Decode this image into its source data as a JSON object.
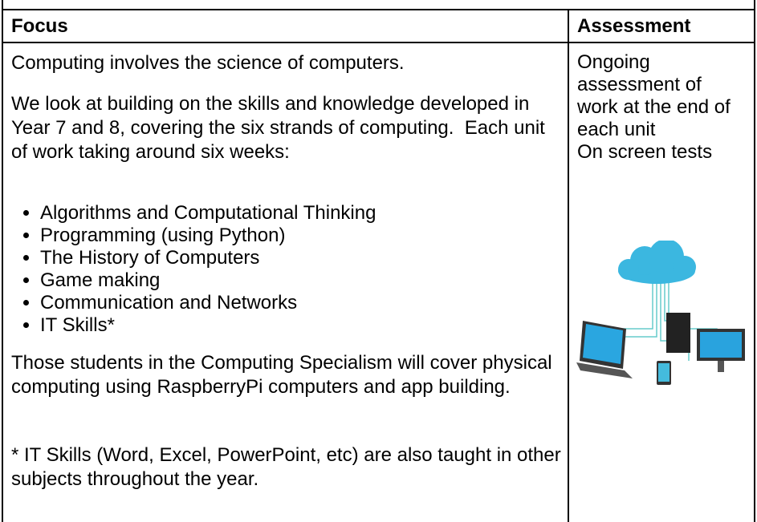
{
  "header": {
    "focus": "Focus",
    "assessment": "Assessment"
  },
  "focus": {
    "intro": "Computing involves the science of computers.",
    "description": "We look at building on the skills and knowledge developed in Year 7 and 8, covering the six strands of computing.  Each unit of work taking around six weeks:",
    "units": [
      "Algorithms and Computational Thinking",
      "Programming (using Python)",
      "The History of Computers",
      "Game making",
      "Communication and Networks",
      "IT Skills*"
    ],
    "specialism": "Those students in the Computing Specialism will cover physical computing using RaspberryPi computers and app building.",
    "note": "* IT Skills (Word, Excel, PowerPoint, etc) are also taught in other subjects throughout the year."
  },
  "assessment": {
    "method": "Ongoing assessment of work at the end of each unit",
    "tests": "On screen tests"
  }
}
